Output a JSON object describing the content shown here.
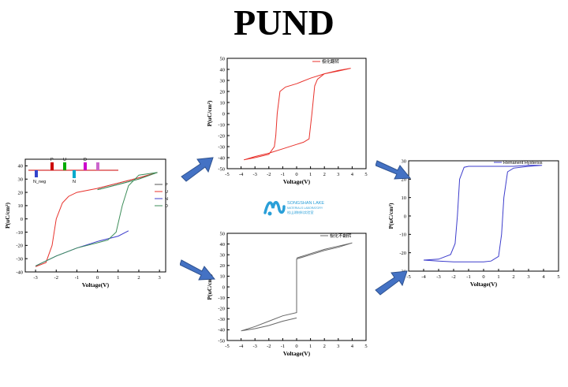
{
  "title": "PUND",
  "colors": {
    "arrow": "#4472C4",
    "red": "#E8312B",
    "gray": "#555555",
    "blue": "#3D3DCC",
    "green": "#3E8E5A"
  },
  "logo": {
    "name": "SONGSHAN LAKE",
    "sub1": "MATERIALS LABORATORY",
    "sub2": "松山湖材料实验室"
  },
  "chart_data": [
    {
      "id": "pund-cycle",
      "type": "line",
      "xlabel": "Voltage(V)",
      "ylabel": "P(uC/cm²)",
      "xlim": [
        -3.5,
        3.3
      ],
      "ylim": [
        -40,
        45
      ],
      "xticks": [
        -3,
        -2,
        -1,
        0,
        1,
        2,
        3
      ],
      "yticks": [
        -40,
        -30,
        -20,
        -10,
        0,
        10,
        20,
        30,
        40
      ],
      "legend": [
        "P",
        "U",
        "N",
        "D"
      ],
      "series": [
        {
          "name": "P",
          "color": "#555555",
          "points": [
            [
              0,
              22
            ],
            [
              1,
              26
            ],
            [
              2,
              30
            ],
            [
              2.9,
              35
            ],
            [
              2,
              31
            ],
            [
              1,
              27
            ],
            [
              0,
              23
            ]
          ]
        },
        {
          "name": "U",
          "color": "#E8312B",
          "points": [
            [
              -3,
              -36
            ],
            [
              -2.5,
              -33
            ],
            [
              -2.2,
              -20
            ],
            [
              -2,
              0
            ],
            [
              -1.7,
              12
            ],
            [
              -1.4,
              17
            ],
            [
              -1,
              20
            ],
            [
              0,
              23
            ],
            [
              1,
              27
            ],
            [
              2,
              31
            ],
            [
              2.9,
              35
            ]
          ]
        },
        {
          "name": "N",
          "color": "#3D3DCC",
          "points": [
            [
              -3,
              -35.5
            ],
            [
              -2,
              -28
            ],
            [
              -1,
              -22
            ],
            [
              0,
              -17
            ],
            [
              1,
              -13
            ],
            [
              1.5,
              -9
            ]
          ]
        },
        {
          "name": "D",
          "color": "#3E8E5A",
          "points": [
            [
              0,
              22
            ],
            [
              1,
              26
            ],
            [
              2,
              30
            ],
            [
              2.9,
              35
            ],
            [
              2,
              33
            ],
            [
              1.5,
              25
            ],
            [
              1.2,
              10
            ],
            [
              0.9,
              -10
            ],
            [
              0.5,
              -16
            ],
            [
              0,
              -18
            ],
            [
              -1,
              -22
            ],
            [
              -2,
              -28
            ],
            [
              -3,
              -35.5
            ]
          ]
        }
      ],
      "inset": {
        "pulses": [
          {
            "label": "P",
            "color": "#CC0000",
            "dir": "up"
          },
          {
            "label": "U",
            "color": "#00AA00",
            "dir": "up"
          },
          {
            "label": "N",
            "color": "#00AACC",
            "dir": "down"
          },
          {
            "label": "D",
            "color": "#CC00CC",
            "dir": "up"
          }
        ],
        "start_label": "N_neg"
      }
    },
    {
      "id": "switching",
      "type": "line",
      "xlabel": "Voltage(V)",
      "ylabel": "P(uC/cm²)",
      "xlim": [
        -5,
        5
      ],
      "ylim": [
        -50,
        50
      ],
      "xticks": [
        -5,
        -4,
        -3,
        -2,
        -1,
        0,
        1,
        2,
        3,
        4,
        5
      ],
      "yticks": [
        -50,
        -40,
        -30,
        -20,
        -10,
        0,
        10,
        20,
        30,
        40,
        50
      ],
      "legend": [
        "极化翻转"
      ],
      "series": [
        {
          "name": "极化翻转",
          "color": "#E8312B",
          "points": [
            [
              0,
              27
            ],
            [
              1,
              32
            ],
            [
              2,
              36
            ],
            [
              3,
              38.5
            ],
            [
              3.9,
              41
            ],
            [
              3,
              39
            ],
            [
              2,
              36
            ],
            [
              1.5,
              31
            ],
            [
              1.3,
              25
            ],
            [
              1.1,
              0
            ],
            [
              0.9,
              -23
            ],
            [
              0.5,
              -26
            ],
            [
              0,
              -28
            ]
          ]
        },
        {
          "name": "",
          "color": "#E8312B",
          "points": [
            [
              0,
              -28
            ],
            [
              -1,
              -32
            ],
            [
              -2,
              -36
            ],
            [
              -3,
              -39
            ],
            [
              -3.8,
              -42
            ],
            [
              -3,
              -40
            ],
            [
              -2,
              -37
            ],
            [
              -1.6,
              -30
            ],
            [
              -1.5,
              -20
            ],
            [
              -1.4,
              0
            ],
            [
              -1.2,
              20
            ],
            [
              -0.8,
              24
            ],
            [
              0,
              27
            ]
          ]
        }
      ]
    },
    {
      "id": "non-switching",
      "type": "line",
      "xlabel": "Voltage(V)",
      "ylabel": "P(uC/cm²)",
      "xlim": [
        -5,
        5
      ],
      "ylim": [
        -50,
        50
      ],
      "xticks": [
        -5,
        -4,
        -3,
        -2,
        -1,
        0,
        1,
        2,
        3,
        4,
        5
      ],
      "yticks": [
        -50,
        -40,
        -30,
        -20,
        -10,
        0,
        10,
        20,
        30,
        40,
        50
      ],
      "legend": [
        "极化不翻转"
      ],
      "series": [
        {
          "name": "极化不翻转",
          "color": "#666666",
          "points": [
            [
              0,
              27
            ],
            [
              1,
              31
            ],
            [
              2,
              35
            ],
            [
              3,
              38
            ],
            [
              4,
              41
            ],
            [
              3,
              37
            ],
            [
              2,
              34
            ],
            [
              1,
              30
            ],
            [
              0,
              26
            ],
            [
              0,
              -24
            ],
            [
              -1,
              -27
            ],
            [
              -2,
              -32
            ],
            [
              -3,
              -37
            ],
            [
              -4,
              -41
            ],
            [
              -3,
              -39
            ],
            [
              -2,
              -36
            ],
            [
              -1,
              -32
            ],
            [
              0,
              -29
            ]
          ]
        }
      ]
    },
    {
      "id": "remanent",
      "type": "line",
      "xlabel": "Voltage(V)",
      "ylabel": "P(uC/cm²)",
      "xlim": [
        -5,
        5
      ],
      "ylim": [
        -30,
        30
      ],
      "xticks": [
        -5,
        -4,
        -3,
        -2,
        -1,
        0,
        1,
        2,
        3,
        4,
        5
      ],
      "yticks": [
        -30,
        -20,
        -10,
        0,
        10,
        20,
        30
      ],
      "legend": [
        "Remanent Hystersis"
      ],
      "series": [
        {
          "name": "Remanent Hystersis",
          "color": "#3D3DCC",
          "points": [
            [
              -4,
              -24
            ],
            [
              -3,
              -23.5
            ],
            [
              -2.2,
              -21
            ],
            [
              -1.9,
              -15
            ],
            [
              -1.75,
              0
            ],
            [
              -1.6,
              20
            ],
            [
              -1.3,
              26.5
            ],
            [
              -1,
              27
            ],
            [
              0,
              27
            ],
            [
              1,
              27
            ],
            [
              2,
              27
            ],
            [
              3,
              27.5
            ],
            [
              3.9,
              27.5
            ],
            [
              3,
              27
            ],
            [
              2,
              26
            ],
            [
              1.6,
              24
            ],
            [
              1.35,
              10
            ],
            [
              1.2,
              -10
            ],
            [
              1,
              -22
            ],
            [
              0.5,
              -24.5
            ],
            [
              0,
              -25
            ],
            [
              -1,
              -25
            ],
            [
              -2,
              -25
            ],
            [
              -3,
              -24.5
            ],
            [
              -4,
              -24
            ]
          ]
        }
      ]
    }
  ]
}
